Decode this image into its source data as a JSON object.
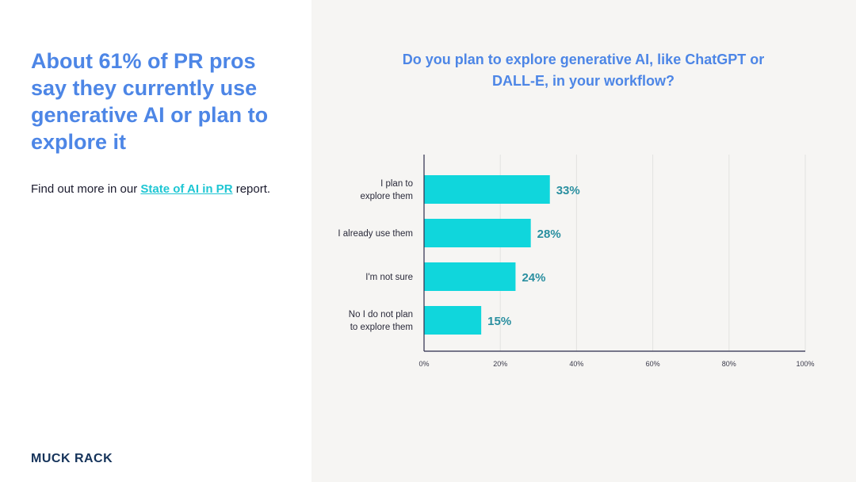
{
  "left": {
    "headline": "About 61% of PR pros say they currently use generative AI or plan to explore it",
    "find_out_prefix": "Find out more in our ",
    "report_link": "State of AI in PR",
    "find_out_suffix": " report.",
    "logo": "MUCK RACK"
  },
  "colors": {
    "accent": "#4d86e6",
    "bar": "#10d6dc",
    "bar_label": "#2a8fa0",
    "link": "#1ec6d3",
    "right_bg": "#f6f5f3"
  },
  "chart_data": {
    "type": "bar",
    "orientation": "horizontal",
    "title": "Do you plan to explore generative AI, like ChatGPT or DALL-E, in your workflow?",
    "categories": [
      [
        "I plan to",
        "explore them"
      ],
      [
        "I already use them"
      ],
      [
        "I'm not sure"
      ],
      [
        "No I do not plan",
        "to explore them"
      ]
    ],
    "values": [
      33,
      28,
      24,
      15
    ],
    "value_labels": [
      "33%",
      "28%",
      "24%",
      "15%"
    ],
    "xlim": [
      0,
      100
    ],
    "xticks": [
      0,
      20,
      40,
      60,
      80,
      100
    ],
    "xtick_labels": [
      "0%",
      "20%",
      "40%",
      "60%",
      "80%",
      "100%"
    ],
    "grid": true,
    "xlabel": "",
    "ylabel": ""
  }
}
